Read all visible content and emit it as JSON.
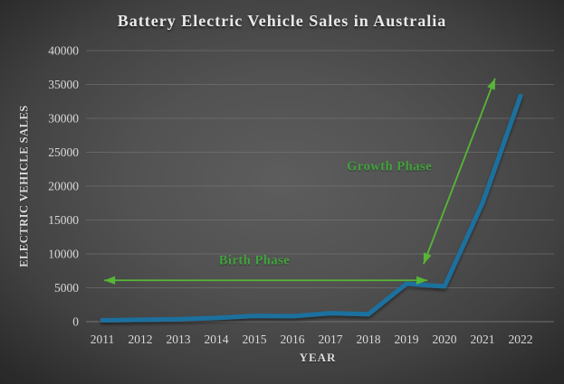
{
  "chart_data": {
    "type": "line",
    "title": "Battery Electric Vehicle Sales in Australia",
    "xlabel": "YEAR",
    "ylabel": "ELECTRIC VEHICLE SALES",
    "categories": [
      "2011",
      "2012",
      "2013",
      "2014",
      "2015",
      "2016",
      "2017",
      "2018",
      "2019",
      "2020",
      "2021",
      "2022"
    ],
    "values": [
      200,
      280,
      370,
      550,
      850,
      800,
      1250,
      1100,
      5600,
      5200,
      17500,
      33300
    ],
    "ylim": [
      0,
      40000
    ],
    "ytick_step": 5000,
    "grid": true,
    "legend": false,
    "line_color": "#1F6F9E",
    "grid_color": "#7A7A7A",
    "tick_color": "#D9D9D9",
    "annotation_text_color": "#41A33C",
    "annotation_arrow_color": "#57B636",
    "annotations": [
      {
        "label": "Birth Phase",
        "label_x": 2015.0,
        "label_y": 8900,
        "arrow": {
          "x1": 2011.05,
          "y1": 6100,
          "x2": 2019.55,
          "y2": 6100
        },
        "double_headed": true
      },
      {
        "label": "Growth Phase",
        "label_x": 2018.55,
        "label_y": 22800,
        "arrow": {
          "x1": 2019.45,
          "y1": 8500,
          "x2": 2021.33,
          "y2": 35900
        },
        "double_headed": true
      }
    ]
  }
}
